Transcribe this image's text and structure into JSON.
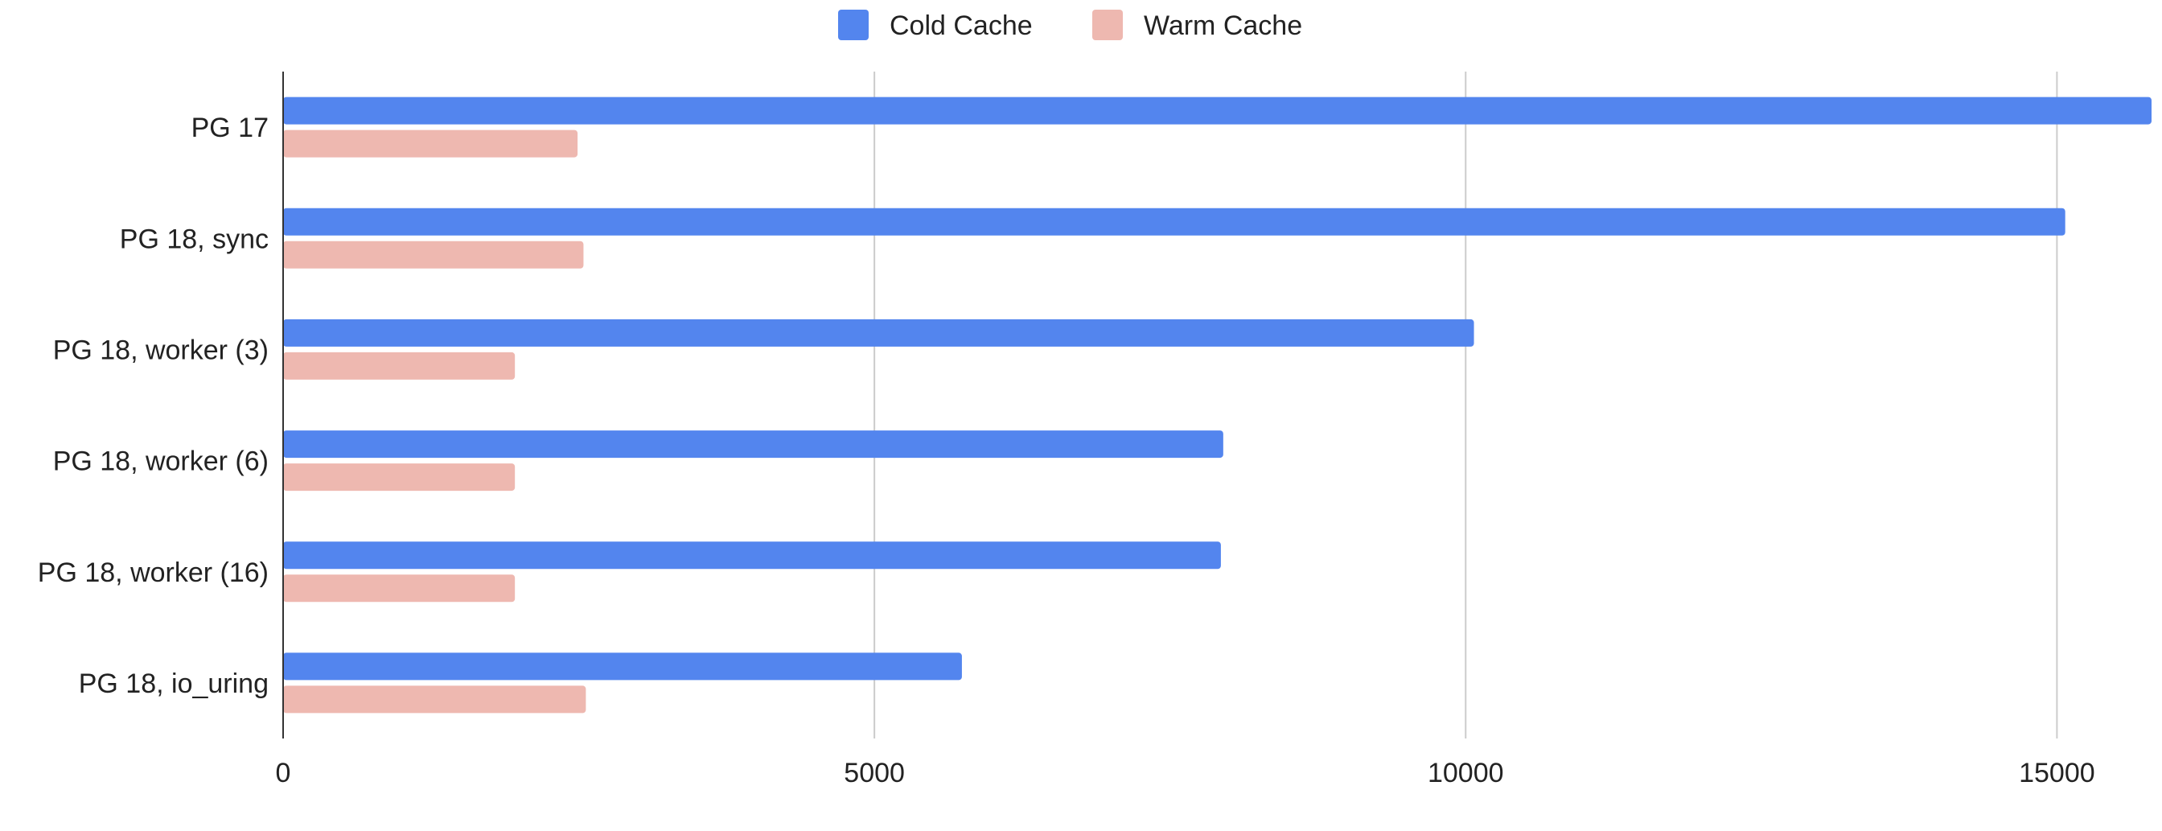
{
  "chart_data": {
    "type": "bar",
    "orientation": "horizontal",
    "title": "",
    "xlabel": "",
    "ylabel": "",
    "categories": [
      "PG 17",
      "PG 18, sync",
      "PG 18, worker (3)",
      "PG 18, worker (6)",
      "PG 18, worker (16)",
      "PG 18, io_uring"
    ],
    "series": [
      {
        "name": "Cold Cache",
        "color": "#5385ee",
        "values": [
          15800,
          15070,
          10070,
          7950,
          7930,
          5740
        ]
      },
      {
        "name": "Warm Cache",
        "color": "#eeb8b0",
        "values": [
          2490,
          2540,
          1960,
          1960,
          1960,
          2560
        ]
      }
    ],
    "xlim": [
      0,
      15800
    ],
    "xticks": [
      0,
      5000,
      10000,
      15000
    ],
    "xtick_labels": [
      "0",
      "5000",
      "10000",
      "15000"
    ],
    "grid": true,
    "legend": "top-center"
  }
}
